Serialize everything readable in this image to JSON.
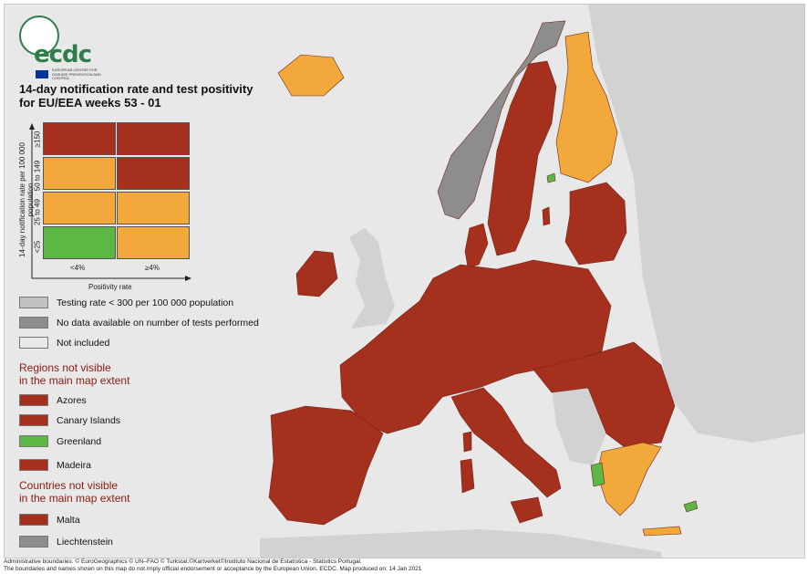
{
  "logo": {
    "name": "ecdc",
    "subtitle": "EUROPEAN CENTRE FOR DISEASE PREVENTION AND CONTROL"
  },
  "title": {
    "line1": "14-day notification rate and test positivity",
    "line2": "for EU/EEA weeks 53 - 01"
  },
  "matrix": {
    "y_label": "14-day notification rate per 100 000 population",
    "y_categories": [
      "≥150",
      "50 to 149",
      "25 to 49",
      "<25"
    ],
    "x_label": "Positivity rate",
    "x_categories": [
      "<4%",
      "≥4%"
    ],
    "cells": [
      [
        "#a5301e",
        "#a5301e"
      ],
      [
        "#f2a83a",
        "#a5301e"
      ],
      [
        "#f2a83a",
        "#f2a83a"
      ],
      [
        "#5db744",
        "#f2a83a"
      ]
    ]
  },
  "legend": {
    "testing_rate": {
      "label": "Testing rate < 300 per 100 000 population",
      "color": "#c2c2c2"
    },
    "no_data": {
      "label": "No data available on number of tests performed",
      "color": "#8d8d8d"
    },
    "not_included": {
      "label": "Not included",
      "color": "#e8e8e8"
    }
  },
  "regions": {
    "heading_line1": "Regions not visible",
    "heading_line2": "in the main map extent",
    "items": [
      {
        "label": "Azores",
        "color": "#a5301e"
      },
      {
        "label": "Canary Islands",
        "color": "#a5301e"
      },
      {
        "label": "Greenland",
        "color": "#5db744"
      },
      {
        "label": "Madeira",
        "color": "#a5301e"
      }
    ]
  },
  "countries": {
    "heading_line1": "Countries not visible",
    "heading_line2": "in the main map extent",
    "items": [
      {
        "label": "Malta",
        "color": "#a5301e"
      },
      {
        "label": "Liechtenstein",
        "color": "#8d8d8d"
      }
    ]
  },
  "map_colors": {
    "red": "#a5301e",
    "orange": "#f2a83a",
    "green": "#5db744",
    "dark_grey": "#8d8d8d",
    "light_grey": "#c9c9c9",
    "sea": "#e8e8e8",
    "non_eu": "#d2d2d2"
  },
  "footer": {
    "line1": "Administrative boundaries: © EuroGeographics © UN–FAO © Turkstat.©Kartverket©Instituto Nacional de Estatística - Statistics Portugal.",
    "line2": "The boundaries and names shown on this map do not imply official endorsement or acceptance by the European Union. ECDC. Map produced on: 14 Jan 2021"
  }
}
